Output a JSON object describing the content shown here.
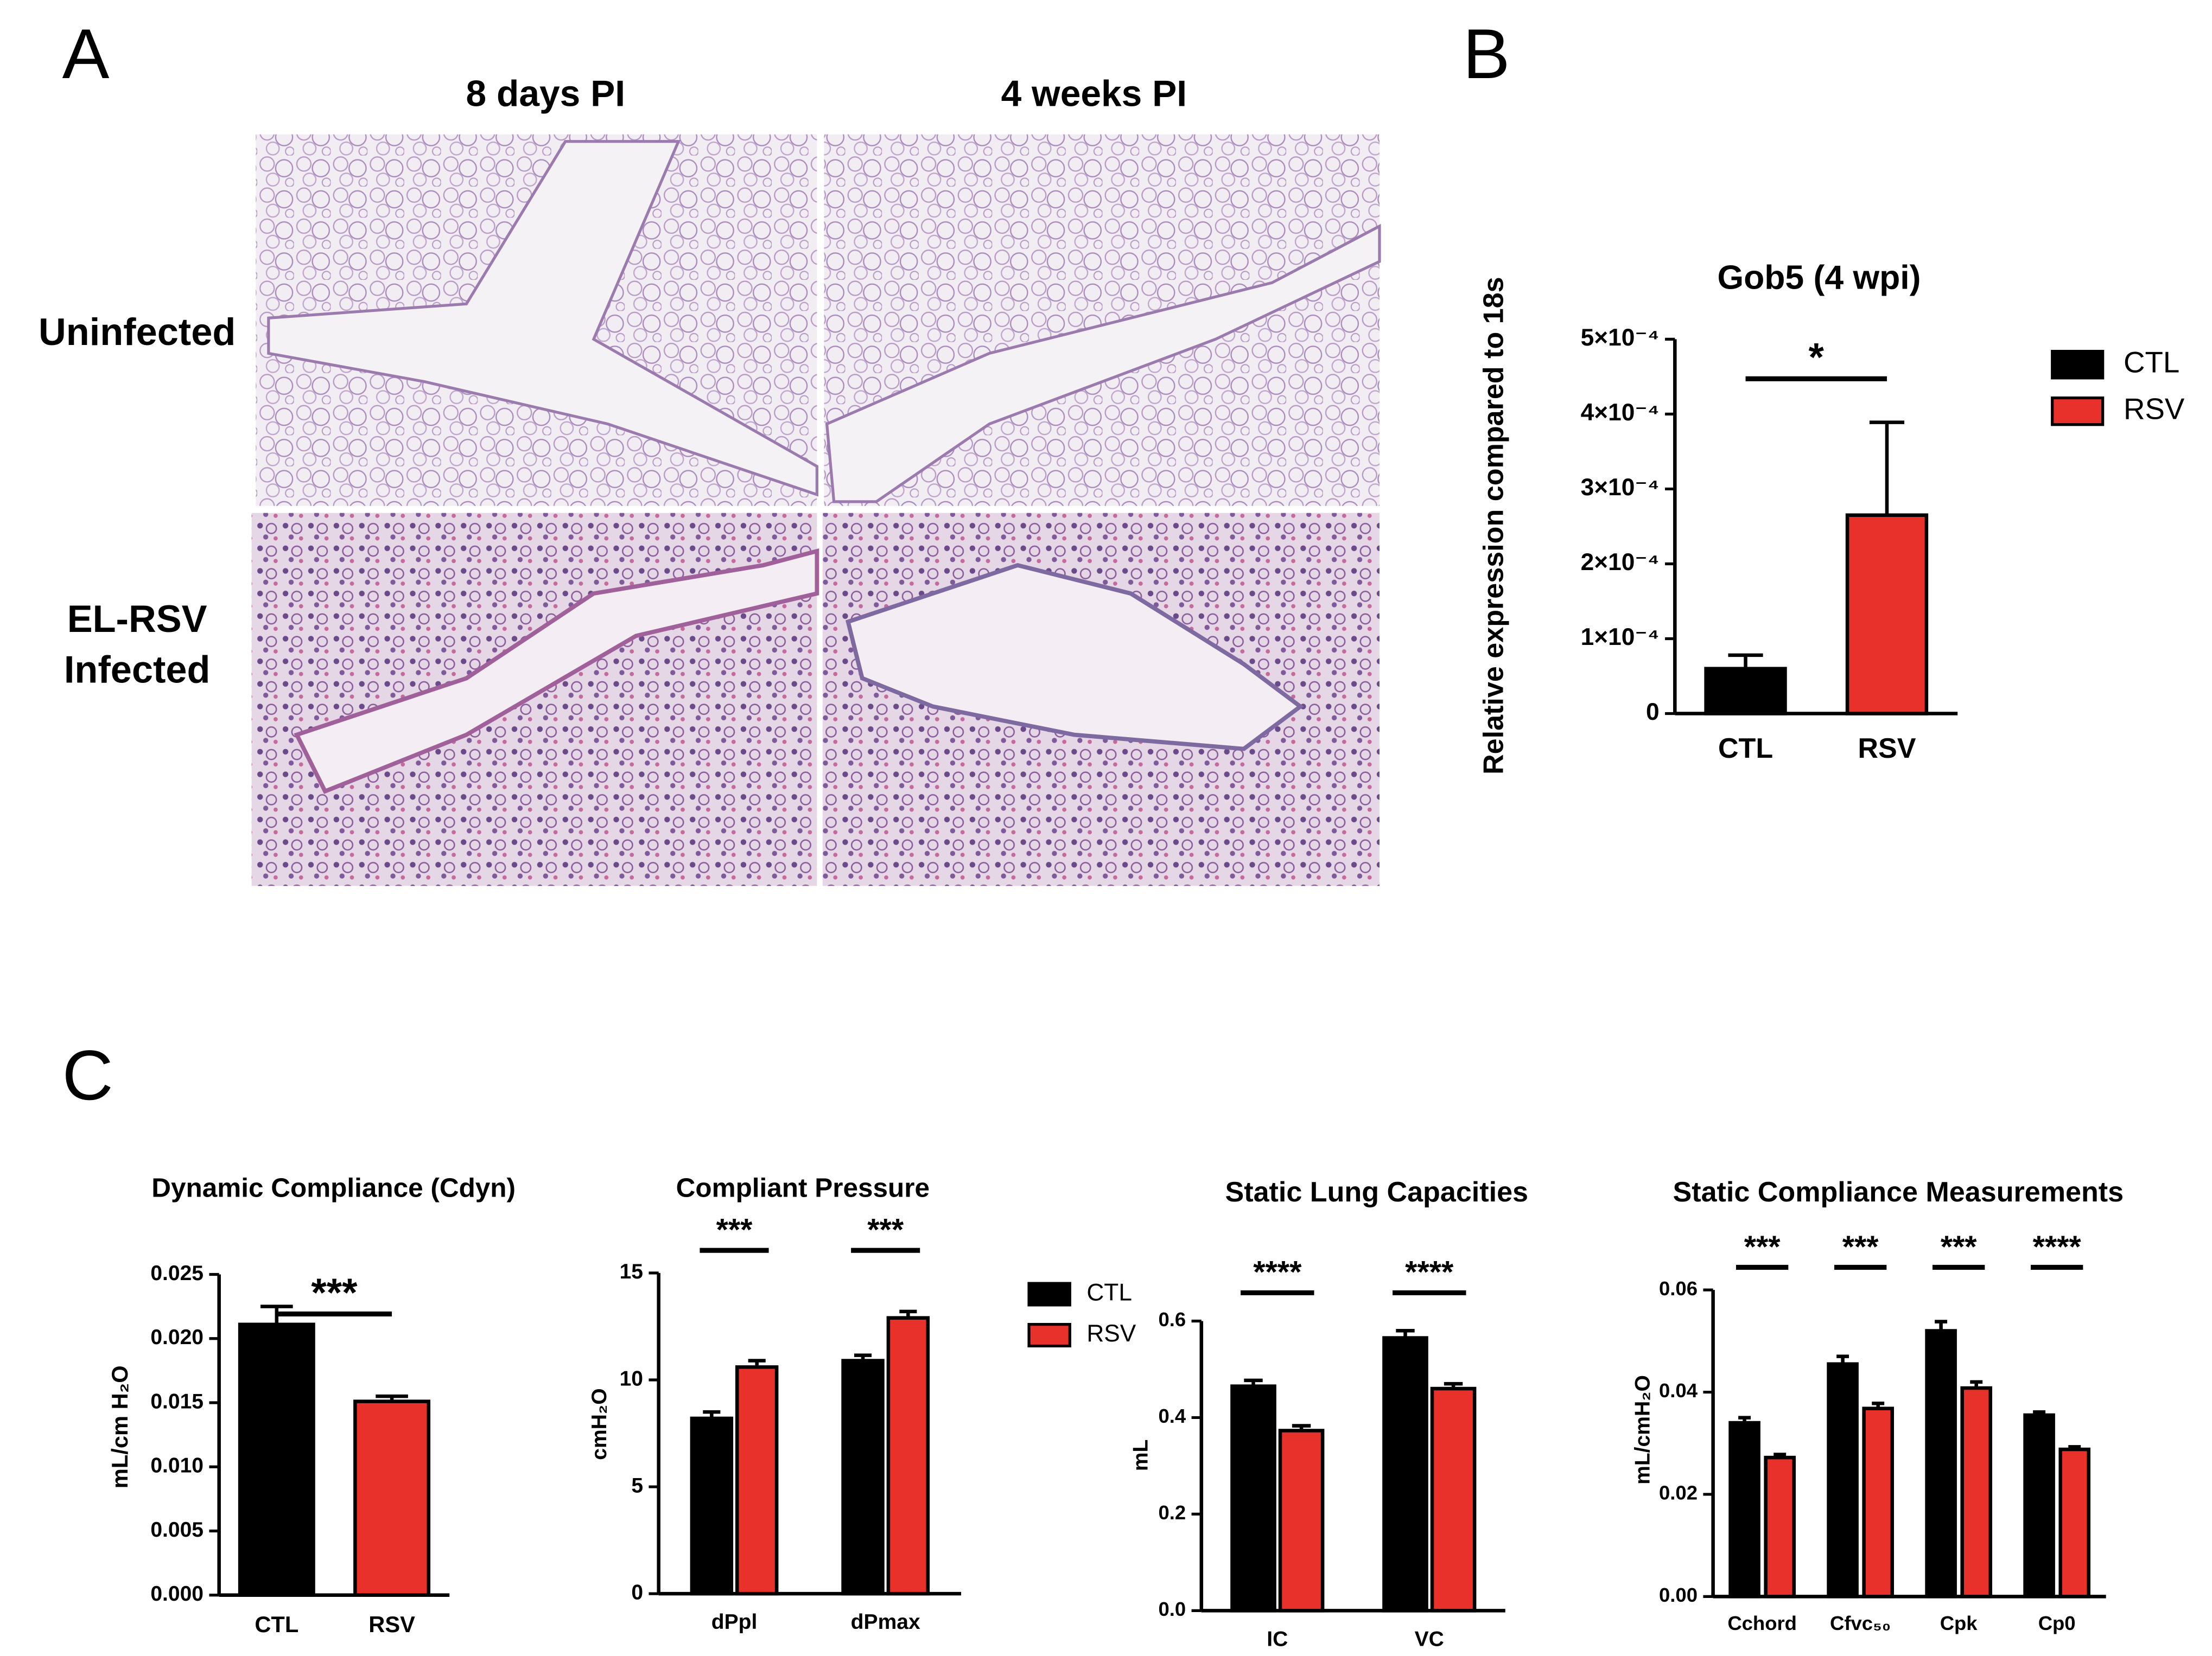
{
  "panel_labels": [
    "A",
    "B",
    "C"
  ],
  "histology": {
    "columns": [
      "8 days PI",
      "4 weeks PI"
    ],
    "rows": [
      [
        "Uninfected"
      ],
      [
        "EL-RSV",
        "Infected"
      ]
    ]
  },
  "chart_data": [
    {
      "type": "bar",
      "title": "Gob5 (4 wpi)",
      "y_label": "Relative expression compared to 18s",
      "categories": [
        "CTL",
        "RSV"
      ],
      "series": [
        {
          "name": "CTL",
          "color": "#000000",
          "values": [
            6e-05,
            null
          ],
          "errors": [
            1.8e-05,
            null
          ]
        },
        {
          "name": "RSV",
          "color": "#e8312a",
          "values": [
            null,
            0.000265
          ],
          "errors": [
            null,
            0.000124
          ]
        }
      ],
      "ylim": [
        0,
        0.0005
      ],
      "yticks": [
        0,
        {
          "value": 0.0001,
          "label": "1×10⁻⁴"
        },
        {
          "value": 0.0002,
          "label": "2×10⁻⁴"
        },
        {
          "value": 0.0003,
          "label": "3×10⁻⁴"
        },
        {
          "value": 0.0004,
          "label": "4×10⁻⁴"
        },
        {
          "value": 0.0005,
          "label": "5×10⁻⁴"
        }
      ],
      "significance": [
        "*"
      ],
      "legend": "right"
    },
    {
      "type": "bar",
      "title": "Dynamic Compliance (Cdyn)",
      "y_label": "mL/cm H₂O",
      "categories": [
        "CTL",
        "RSV"
      ],
      "series": [
        {
          "name": "CTL",
          "color": "#000000",
          "values": [
            0.0211,
            null
          ],
          "errors": [
            0.0014,
            null
          ]
        },
        {
          "name": "RSV",
          "color": "#e8312a",
          "values": [
            null,
            0.0151
          ],
          "errors": [
            null,
            0.0004
          ]
        }
      ],
      "ylim": [
        0,
        0.025
      ],
      "yticks": [
        {
          "value": 0,
          "label": "0.000"
        },
        {
          "value": 0.005,
          "label": "0.005"
        },
        {
          "value": 0.01,
          "label": "0.010"
        },
        {
          "value": 0.015,
          "label": "0.015"
        },
        {
          "value": 0.02,
          "label": "0.020"
        },
        {
          "value": 0.025,
          "label": "0.025"
        }
      ],
      "significance": [
        "***"
      ]
    },
    {
      "type": "bar",
      "title": "Compliant Pressure",
      "y_label": "cmH₂O",
      "categories": [
        "dPpl",
        "dPmax"
      ],
      "series": [
        {
          "name": "CTL",
          "color": "#000000",
          "values": [
            8.2,
            10.9
          ],
          "errors": [
            0.3,
            0.25
          ]
        },
        {
          "name": "RSV",
          "color": "#e8312a",
          "values": [
            10.6,
            12.9
          ],
          "errors": [
            0.3,
            0.3
          ]
        }
      ],
      "ylim": [
        0,
        15
      ],
      "yticks": [
        0,
        5,
        10,
        15
      ],
      "significance": [
        "***",
        "***"
      ],
      "legend": "right"
    },
    {
      "type": "bar",
      "title": "Static Lung Capacities",
      "y_label": "mL",
      "categories": [
        "IC",
        "VC"
      ],
      "series": [
        {
          "name": "CTL",
          "color": "#000000",
          "values": [
            0.465,
            0.565
          ],
          "errors": [
            0.012,
            0.015
          ]
        },
        {
          "name": "RSV",
          "color": "#e8312a",
          "values": [
            0.373,
            0.46
          ],
          "errors": [
            0.01,
            0.01
          ]
        }
      ],
      "ylim": [
        0,
        0.6
      ],
      "yticks": [
        {
          "value": 0,
          "label": "0.0"
        },
        {
          "value": 0.2,
          "label": "0.2"
        },
        {
          "value": 0.4,
          "label": "0.4"
        },
        {
          "value": 0.6,
          "label": "0.6"
        }
      ],
      "significance": [
        "****",
        "****"
      ]
    },
    {
      "type": "bar",
      "title": "Static Compliance Measurements",
      "y_label": "mL/cmH₂O",
      "categories": [
        "Cchord",
        "Cfvc₅₀",
        "Cpk",
        "Cp0"
      ],
      "series": [
        {
          "name": "CTL",
          "color": "#000000",
          "values": [
            0.034,
            0.0455,
            0.052,
            0.0355
          ],
          "errors": [
            0.001,
            0.0015,
            0.0018,
            0.0006
          ]
        },
        {
          "name": "RSV",
          "color": "#e8312a",
          "values": [
            0.0272,
            0.0368,
            0.0408,
            0.0288
          ],
          "errors": [
            0.0006,
            0.001,
            0.0012,
            0.0005
          ]
        }
      ],
      "ylim": [
        0,
        0.06
      ],
      "yticks": [
        {
          "value": 0,
          "label": "0.00"
        },
        {
          "value": 0.02,
          "label": "0.02"
        },
        {
          "value": 0.04,
          "label": "0.04"
        },
        {
          "value": 0.06,
          "label": "0.06"
        }
      ],
      "significance": [
        "***",
        "***",
        "***",
        "****"
      ]
    }
  ]
}
